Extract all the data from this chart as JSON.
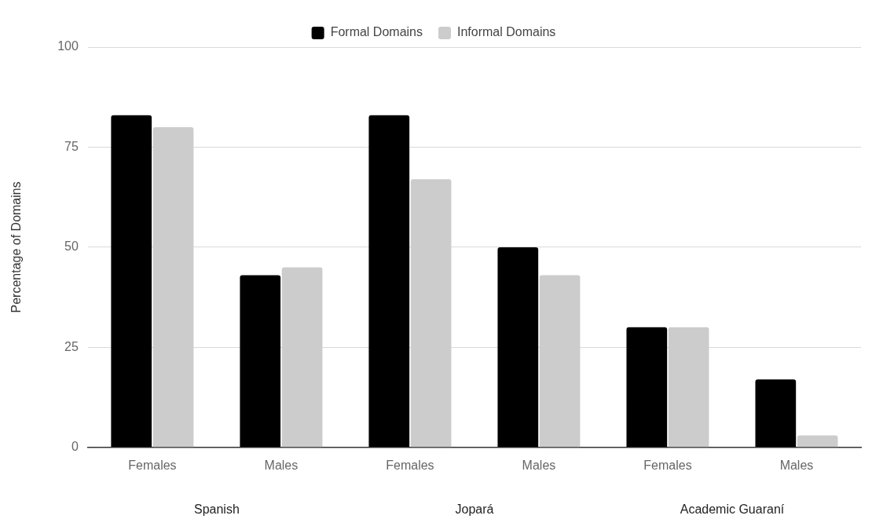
{
  "chart_data": {
    "type": "bar",
    "ylabel": "Percentage of Domains",
    "categories": [
      "Females",
      "Males",
      "Females",
      "Males",
      "Females",
      "Males"
    ],
    "series": [
      {
        "name": "Formal Domains",
        "color": "#000000",
        "values": [
          83,
          43,
          83,
          50,
          30,
          17
        ]
      },
      {
        "name": "Informal Domains",
        "color": "#cccccc",
        "values": [
          80,
          45,
          67,
          43,
          30,
          3
        ]
      }
    ],
    "ylim": [
      0,
      100
    ],
    "yticks": [
      0,
      25,
      50,
      75,
      100
    ],
    "grid": "y",
    "legend": "top",
    "annotations": [
      "Spanish",
      "Jopará",
      "Academic Guaraní"
    ]
  }
}
